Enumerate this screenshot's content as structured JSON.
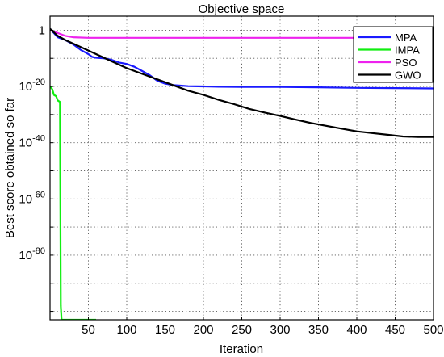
{
  "chart_data": {
    "type": "line",
    "title": "Objective space",
    "xlabel": "Iteration",
    "ylabel": "Best score obtained so far",
    "xlim": [
      0,
      500
    ],
    "ylim_exponent": [
      -100,
      0
    ],
    "yscale": "log",
    "grid": true,
    "legend_position": "top-right",
    "x_ticks": [
      "50",
      "100",
      "150",
      "200",
      "250",
      "300",
      "350",
      "400",
      "450",
      "500"
    ],
    "y_ticks": [
      {
        "base": "10",
        "exp": "-80",
        "value_exponent": -80
      },
      {
        "base": "10",
        "exp": "-60",
        "value_exponent": -60
      },
      {
        "base": "10",
        "exp": "-40",
        "value_exponent": -40
      },
      {
        "base": "10",
        "exp": "-20",
        "value_exponent": -20
      },
      {
        "base": "1",
        "exp": "0",
        "value_exponent": 0
      }
    ],
    "series": [
      {
        "name": "MPA",
        "color": "#1a1aff",
        "points_log10": [
          [
            0,
            0.5
          ],
          [
            5,
            -1
          ],
          [
            10,
            -2.5
          ],
          [
            20,
            -3.5
          ],
          [
            30,
            -5
          ],
          [
            40,
            -7
          ],
          [
            50,
            -8.5
          ],
          [
            55,
            -9.5
          ],
          [
            60,
            -9.8
          ],
          [
            70,
            -10
          ],
          [
            80,
            -10.5
          ],
          [
            90,
            -11.5
          ],
          [
            100,
            -12
          ],
          [
            110,
            -13
          ],
          [
            120,
            -14.5
          ],
          [
            130,
            -16
          ],
          [
            140,
            -18
          ],
          [
            150,
            -19
          ],
          [
            160,
            -19.5
          ],
          [
            170,
            -19.7
          ],
          [
            180,
            -19.9
          ],
          [
            200,
            -20
          ],
          [
            220,
            -20.1
          ],
          [
            250,
            -20.2
          ],
          [
            300,
            -20.2
          ],
          [
            350,
            -20.3
          ],
          [
            400,
            -20.5
          ],
          [
            450,
            -20.6
          ],
          [
            500,
            -20.7
          ]
        ]
      },
      {
        "name": "IMPA",
        "color": "#11ee11",
        "points_log10": [
          [
            0,
            -20
          ],
          [
            3,
            -21
          ],
          [
            5,
            -23
          ],
          [
            8,
            -23.5
          ],
          [
            10,
            -25
          ],
          [
            13,
            -25.5
          ],
          [
            14,
            -98
          ],
          [
            15,
            -103
          ],
          [
            40,
            -103
          ],
          [
            60,
            -103
          ]
        ]
      },
      {
        "name": "PSO",
        "color": "#ee22ee",
        "points_log10": [
          [
            0,
            0
          ],
          [
            10,
            -1
          ],
          [
            20,
            -2
          ],
          [
            30,
            -2.5
          ],
          [
            50,
            -2.7
          ],
          [
            100,
            -2.7
          ],
          [
            200,
            -2.7
          ],
          [
            300,
            -2.7
          ],
          [
            400,
            -2.7
          ],
          [
            500,
            -2.7
          ]
        ]
      },
      {
        "name": "GWO",
        "color": "#000000",
        "points_log10": [
          [
            0,
            0.5
          ],
          [
            10,
            -2
          ],
          [
            20,
            -3.5
          ],
          [
            40,
            -6
          ],
          [
            60,
            -8.5
          ],
          [
            80,
            -11
          ],
          [
            100,
            -13.5
          ],
          [
            120,
            -15.5
          ],
          [
            140,
            -17.5
          ],
          [
            160,
            -19.5
          ],
          [
            180,
            -21.5
          ],
          [
            200,
            -23
          ],
          [
            220,
            -24.8
          ],
          [
            240,
            -26.3
          ],
          [
            260,
            -28
          ],
          [
            280,
            -29.3
          ],
          [
            300,
            -30.5
          ],
          [
            320,
            -31.8
          ],
          [
            340,
            -33
          ],
          [
            360,
            -34
          ],
          [
            380,
            -35
          ],
          [
            400,
            -36
          ],
          [
            420,
            -36.6
          ],
          [
            440,
            -37.2
          ],
          [
            460,
            -37.8
          ],
          [
            480,
            -38
          ],
          [
            500,
            -38
          ]
        ]
      }
    ]
  }
}
